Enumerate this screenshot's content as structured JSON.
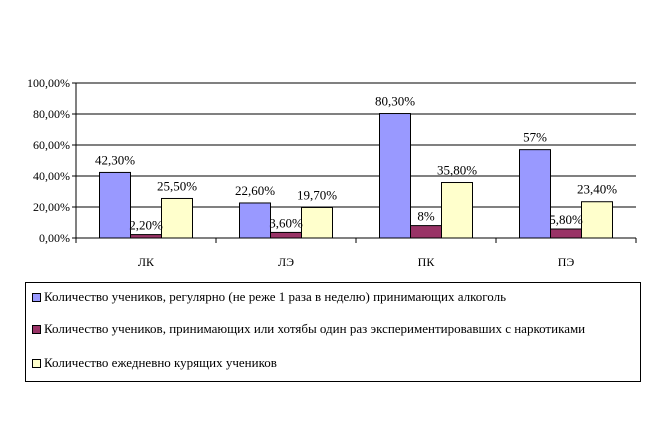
{
  "chart_data": {
    "type": "bar",
    "categories": [
      "ЛК",
      "ЛЭ",
      "ПК",
      "ПЭ"
    ],
    "ylim": [
      0,
      100
    ],
    "yticks": [
      "0,00%",
      "20,00%",
      "40,00%",
      "60,00%",
      "80,00%",
      "100,00%"
    ],
    "grid": true,
    "legend_position": "bottom",
    "series": [
      {
        "name": "Количество учеников, регулярно (не реже 1 раза в неделю) принимающих алкоголь",
        "color": "#9999ff",
        "values": [
          42.3,
          22.6,
          80.3,
          57
        ],
        "labels": [
          "42,30%",
          "22,60%",
          "80,30%",
          "57%"
        ]
      },
      {
        "name": "Количество учеников, принимающих или хотябы один раз экспериментировавших с наркотиками",
        "color": "#993366",
        "values": [
          2.2,
          3.6,
          8,
          5.8
        ],
        "labels": [
          "2,20%",
          "3,60%",
          "8%",
          "5,80%"
        ]
      },
      {
        "name": "Количество ежедневно курящих учеников",
        "color": "#ffffcc",
        "values": [
          25.5,
          19.7,
          35.8,
          23.4
        ],
        "labels": [
          "25,50%",
          "19,70%",
          "35,80%",
          "23,40%"
        ]
      }
    ]
  }
}
